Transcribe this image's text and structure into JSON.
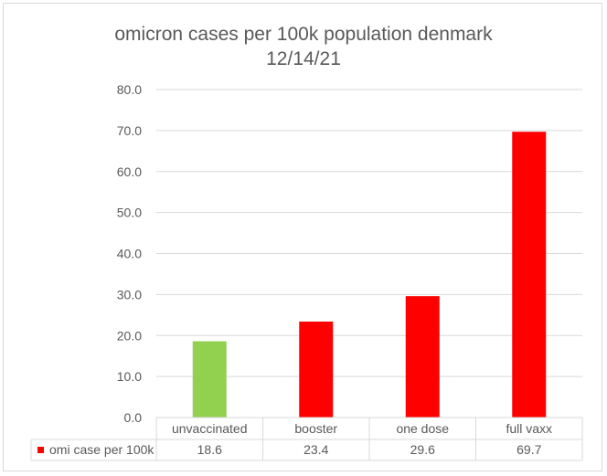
{
  "chart_data": {
    "type": "bar",
    "title": "omicron cases per 100k population denmark",
    "subtitle": "12/14/21",
    "categories": [
      "unvaccinated",
      "booster",
      "one dose",
      "full vaxx"
    ],
    "series": [
      {
        "name": "omi case per 100k",
        "values": [
          18.6,
          23.4,
          29.6,
          69.7
        ],
        "value_labels": [
          "18.6",
          "23.4",
          "29.6",
          "69.7"
        ],
        "legend_color": "#ff0000"
      }
    ],
    "bar_colors": [
      "#92d050",
      "#ff0000",
      "#ff0000",
      "#ff0000"
    ],
    "ylim": [
      0,
      80
    ],
    "yticks": [
      0,
      10,
      20,
      30,
      40,
      50,
      60,
      70,
      80
    ],
    "ytick_labels": [
      "0.0",
      "10.0",
      "20.0",
      "30.0",
      "40.0",
      "50.0",
      "60.0",
      "70.0",
      "80.0"
    ],
    "grid": true,
    "data_table": true,
    "xlabel": "",
    "ylabel": ""
  }
}
